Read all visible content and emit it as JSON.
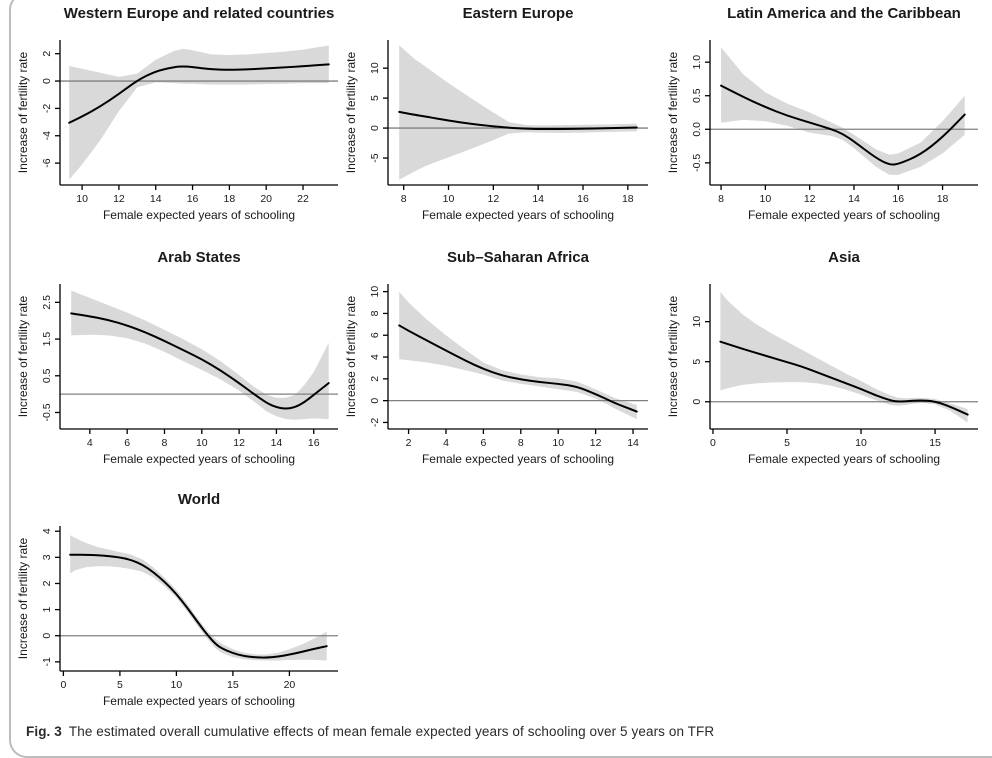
{
  "figure": {
    "caption_label": "Fig. 3",
    "caption_text": "The estimated overall cumulative effects of mean female expected years of schooling over 5 years on TFR"
  },
  "style": {
    "band_color": "#d9d9d9",
    "line_color": "#000000",
    "zero_line_color": "#808080",
    "axis_color": "#000000",
    "frame_color": "#bdbdbd"
  },
  "chart_data": [
    {
      "type": "line",
      "title": "Western Europe and related countries",
      "xlabel": "Female expected years of schooling",
      "ylabel": "Increase of fertility rate",
      "xlim": [
        8.8,
        23.9
      ],
      "ylim": [
        -7.6,
        3.0
      ],
      "xticks": [
        10,
        12,
        14,
        16,
        18,
        20,
        22
      ],
      "xtick_labels": [
        "10",
        "12",
        "14",
        "16",
        "18",
        "20",
        "22"
      ],
      "yticks": [
        -6,
        -4,
        -2,
        0,
        2
      ],
      "ytick_labels": [
        "-6",
        "-4",
        "-2",
        "0",
        "2"
      ],
      "zero_line": 0,
      "x": [
        9.3,
        10,
        11,
        12,
        13,
        14,
        15,
        15.5,
        16,
        17,
        18,
        19,
        20,
        21,
        22,
        23.4
      ],
      "y": [
        -3.05,
        -2.6,
        -1.85,
        -0.95,
        0.05,
        0.72,
        1.02,
        1.08,
        1.02,
        0.85,
        0.82,
        0.85,
        0.92,
        1.0,
        1.08,
        1.22
      ],
      "ci_upper": [
        1.1,
        0.9,
        0.6,
        0.3,
        0.55,
        1.55,
        2.2,
        2.35,
        2.25,
        1.95,
        1.9,
        1.95,
        2.05,
        2.15,
        2.3,
        2.6
      ],
      "ci_lower": [
        -7.2,
        -6.1,
        -4.3,
        -2.2,
        -0.45,
        -0.1,
        -0.15,
        -0.2,
        -0.2,
        -0.25,
        -0.26,
        -0.25,
        -0.22,
        -0.2,
        -0.15,
        -0.15
      ]
    },
    {
      "type": "line",
      "title": "Eastern Europe",
      "xlabel": "Female expected years of schooling",
      "ylabel": "Increase of fertility rate",
      "xlim": [
        7.3,
        18.9
      ],
      "ylim": [
        -9.5,
        14.7
      ],
      "xticks": [
        8,
        10,
        12,
        14,
        16,
        18
      ],
      "xtick_labels": [
        "8",
        "10",
        "12",
        "14",
        "16",
        "18"
      ],
      "yticks": [
        -5,
        0,
        5,
        10
      ],
      "ytick_labels": [
        "-5",
        "0",
        "5",
        "10"
      ],
      "zero_line": 0,
      "x": [
        7.8,
        8.5,
        9,
        10,
        11,
        12,
        12.7,
        13.5,
        14,
        15,
        16,
        17,
        18.4
      ],
      "y": [
        2.7,
        2.2,
        1.9,
        1.25,
        0.7,
        0.3,
        0.05,
        -0.1,
        -0.15,
        -0.15,
        -0.1,
        -0.03,
        0.1
      ],
      "ci_upper": [
        13.8,
        11.5,
        10.2,
        7.5,
        5.0,
        2.6,
        1.0,
        0.5,
        0.45,
        0.5,
        0.55,
        0.6,
        0.75
      ],
      "ci_lower": [
        -8.6,
        -7.2,
        -6.3,
        -4.9,
        -3.5,
        -2.0,
        -0.9,
        -0.7,
        -0.75,
        -0.8,
        -0.75,
        -0.65,
        -0.55
      ]
    },
    {
      "type": "line",
      "title": "Latin America and the Caribbean",
      "xlabel": "Female expected years of schooling",
      "ylabel": "Increase of fertility rate",
      "xlim": [
        7.5,
        19.6
      ],
      "ylim": [
        -0.83,
        1.33
      ],
      "xticks": [
        8,
        10,
        12,
        14,
        16,
        18
      ],
      "xtick_labels": [
        "8",
        "10",
        "12",
        "14",
        "16",
        "18"
      ],
      "yticks": [
        -0.5,
        0.0,
        0.5,
        1.0
      ],
      "ytick_labels": [
        "-0.5",
        "0.0",
        "0.5",
        "1.0"
      ],
      "zero_line": 0,
      "x": [
        8,
        9,
        10,
        11,
        12,
        13,
        13.5,
        14,
        15,
        15.6,
        16,
        17,
        18,
        19
      ],
      "y": [
        0.65,
        0.48,
        0.33,
        0.2,
        0.1,
        0.0,
        -0.07,
        -0.18,
        -0.43,
        -0.53,
        -0.52,
        -0.38,
        -0.12,
        0.22
      ],
      "ci_upper": [
        1.22,
        0.82,
        0.55,
        0.38,
        0.25,
        0.1,
        0.02,
        -0.08,
        -0.3,
        -0.38,
        -0.36,
        -0.2,
        0.12,
        0.5
      ],
      "ci_lower": [
        0.1,
        0.14,
        0.12,
        0.05,
        -0.05,
        -0.1,
        -0.16,
        -0.28,
        -0.56,
        -0.68,
        -0.68,
        -0.56,
        -0.36,
        -0.08
      ]
    },
    {
      "type": "line",
      "title": "Arab States",
      "xlabel": "Female expected years of schooling",
      "ylabel": "Increase of fertility rate",
      "xlim": [
        2.4,
        17.3
      ],
      "ylim": [
        -0.95,
        3.0
      ],
      "xticks": [
        4,
        6,
        8,
        10,
        12,
        14,
        16
      ],
      "xtick_labels": [
        "4",
        "6",
        "8",
        "10",
        "12",
        "14",
        "16"
      ],
      "yticks": [
        -0.5,
        0.5,
        1.5,
        2.5
      ],
      "ytick_labels": [
        "-0.5",
        "0.5",
        "1.5",
        "2.5"
      ],
      "zero_line": 0,
      "x": [
        3,
        4,
        5,
        6,
        7,
        8,
        9,
        10,
        11,
        12,
        12.8,
        13.5,
        14,
        14.5,
        15,
        15.5,
        16,
        16.8
      ],
      "y": [
        2.2,
        2.12,
        2.02,
        1.87,
        1.68,
        1.45,
        1.2,
        0.95,
        0.65,
        0.3,
        0.0,
        -0.25,
        -0.36,
        -0.4,
        -0.36,
        -0.22,
        -0.02,
        0.3
      ],
      "ci_upper": [
        2.82,
        2.62,
        2.42,
        2.22,
        2.0,
        1.75,
        1.5,
        1.22,
        0.9,
        0.52,
        0.2,
        -0.02,
        -0.1,
        -0.1,
        -0.02,
        0.25,
        0.6,
        1.4
      ],
      "ci_lower": [
        1.6,
        1.62,
        1.6,
        1.52,
        1.37,
        1.15,
        0.9,
        0.66,
        0.4,
        0.1,
        -0.2,
        -0.48,
        -0.6,
        -0.68,
        -0.7,
        -0.68,
        -0.66,
        -0.68
      ]
    },
    {
      "type": "line",
      "title": "Sub–Saharan Africa",
      "xlabel": "Female expected years of schooling",
      "ylabel": "Increase of fertility rate",
      "xlim": [
        0.9,
        14.8
      ],
      "ylim": [
        -2.6,
        10.7
      ],
      "xticks": [
        2,
        4,
        6,
        8,
        10,
        12,
        14
      ],
      "xtick_labels": [
        "2",
        "4",
        "6",
        "8",
        "10",
        "12",
        "14"
      ],
      "yticks": [
        -2,
        0,
        2,
        4,
        6,
        8,
        10
      ],
      "ytick_labels": [
        "-2",
        "0",
        "2",
        "4",
        "6",
        "8",
        "10"
      ],
      "zero_line": 0,
      "x": [
        1.5,
        2,
        3,
        4,
        5,
        6,
        7,
        8,
        9,
        10,
        11,
        12,
        12.7,
        13,
        14.2
      ],
      "y": [
        6.9,
        6.4,
        5.5,
        4.6,
        3.7,
        2.9,
        2.3,
        1.95,
        1.7,
        1.55,
        1.3,
        0.6,
        0.05,
        -0.2,
        -1.0
      ],
      "ci_upper": [
        10.0,
        9.0,
        7.4,
        6.0,
        4.7,
        3.5,
        2.8,
        2.4,
        2.15,
        2.05,
        1.75,
        1.05,
        0.5,
        0.25,
        -0.4
      ],
      "ci_lower": [
        3.8,
        3.7,
        3.5,
        3.2,
        2.8,
        2.4,
        1.85,
        1.55,
        1.3,
        1.05,
        0.8,
        0.2,
        -0.4,
        -0.7,
        -1.7
      ]
    },
    {
      "type": "line",
      "title": "Asia",
      "xlabel": "Female expected years of schooling",
      "ylabel": "Increase of fertility rate",
      "xlim": [
        -0.2,
        17.9
      ],
      "ylim": [
        -3.4,
        14.7
      ],
      "xticks": [
        0,
        5,
        10,
        15
      ],
      "xtick_labels": [
        "0",
        "5",
        "10",
        "15"
      ],
      "yticks": [
        0,
        5,
        10
      ],
      "ytick_labels": [
        "0",
        "5",
        "10"
      ],
      "zero_line": 0,
      "x": [
        0.5,
        1,
        2,
        3,
        4,
        5,
        6,
        7,
        8,
        9,
        10,
        11,
        12,
        12.5,
        13,
        14,
        15,
        16,
        17.2
      ],
      "y": [
        7.5,
        7.2,
        6.6,
        6.05,
        5.5,
        4.95,
        4.4,
        3.7,
        3.0,
        2.3,
        1.6,
        0.8,
        0.15,
        0.02,
        0.05,
        0.2,
        0.05,
        -0.6,
        -1.6
      ],
      "ci_upper": [
        13.7,
        12.6,
        10.9,
        9.6,
        8.5,
        7.5,
        6.5,
        5.5,
        4.5,
        3.5,
        2.6,
        1.6,
        0.8,
        0.5,
        0.45,
        0.5,
        0.35,
        -0.2,
        -0.9
      ],
      "ci_lower": [
        1.4,
        1.7,
        2.1,
        2.3,
        2.4,
        2.45,
        2.45,
        2.3,
        2.0,
        1.5,
        0.9,
        0.2,
        -0.4,
        -0.5,
        -0.4,
        -0.1,
        -0.3,
        -1.1,
        -2.6
      ]
    },
    {
      "type": "line",
      "title": "World",
      "xlabel": "Female expected years of schooling",
      "ylabel": "Increase of fertility rate",
      "xlim": [
        -0.3,
        24.3
      ],
      "ylim": [
        -1.35,
        4.2
      ],
      "xticks": [
        0,
        5,
        10,
        15,
        20
      ],
      "xtick_labels": [
        "0",
        "5",
        "10",
        "15",
        "20"
      ],
      "yticks": [
        -1,
        0,
        1,
        2,
        3,
        4
      ],
      "ytick_labels": [
        "-1",
        "0",
        "1",
        "2",
        "3",
        "4"
      ],
      "zero_line": 0,
      "x": [
        0.6,
        1,
        2,
        3,
        4,
        5,
        6,
        7,
        8,
        9,
        10,
        11,
        12,
        12.8,
        13.5,
        14,
        15,
        16,
        17,
        18,
        19,
        20,
        21,
        22,
        23.3
      ],
      "y": [
        3.1,
        3.1,
        3.1,
        3.08,
        3.05,
        3.0,
        2.9,
        2.72,
        2.42,
        2.05,
        1.6,
        1.05,
        0.45,
        0.0,
        -0.33,
        -0.48,
        -0.67,
        -0.78,
        -0.83,
        -0.84,
        -0.8,
        -0.72,
        -0.63,
        -0.52,
        -0.4
      ],
      "ci_upper": [
        3.85,
        3.75,
        3.55,
        3.4,
        3.3,
        3.2,
        3.1,
        2.92,
        2.6,
        2.2,
        1.75,
        1.2,
        0.6,
        0.15,
        -0.15,
        -0.3,
        -0.52,
        -0.65,
        -0.72,
        -0.72,
        -0.65,
        -0.52,
        -0.35,
        -0.15,
        0.15
      ],
      "ci_lower": [
        2.38,
        2.5,
        2.62,
        2.66,
        2.66,
        2.62,
        2.55,
        2.45,
        2.22,
        1.88,
        1.45,
        0.9,
        0.3,
        -0.15,
        -0.5,
        -0.65,
        -0.82,
        -0.9,
        -0.94,
        -0.95,
        -0.95,
        -0.93,
        -0.92,
        -0.92,
        -0.95
      ]
    }
  ]
}
